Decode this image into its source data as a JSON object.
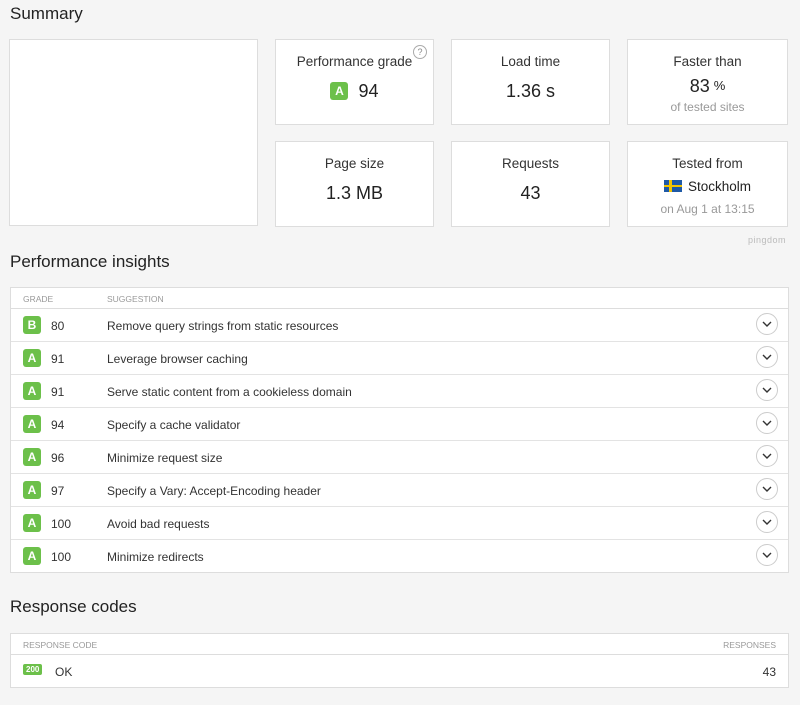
{
  "summary": {
    "title": "Summary",
    "performance": {
      "label": "Performance grade",
      "grade": "A",
      "value": "94",
      "help": "?"
    },
    "load_time": {
      "label": "Load time",
      "value": "1.36 s"
    },
    "faster_than": {
      "label": "Faster than",
      "value": "83",
      "unit": "%",
      "sub": "of tested sites"
    },
    "page_size": {
      "label": "Page size",
      "value": "1.3 MB"
    },
    "requests": {
      "label": "Requests",
      "value": "43"
    },
    "tested_from": {
      "label": "Tested from",
      "location": "Stockholm",
      "flag_icon": "sweden-flag-icon",
      "sub": "on Aug 1 at 13:15"
    },
    "brand": "pingdom"
  },
  "insights": {
    "title": "Performance insights",
    "col_grade": "Grade",
    "col_suggestion": "Suggestion",
    "grade_color": "#6cc04a",
    "rows": [
      {
        "grade": "B",
        "score": "80",
        "suggestion": "Remove query strings from static resources"
      },
      {
        "grade": "A",
        "score": "91",
        "suggestion": "Leverage browser caching"
      },
      {
        "grade": "A",
        "score": "91",
        "suggestion": "Serve static content from a cookieless domain"
      },
      {
        "grade": "A",
        "score": "94",
        "suggestion": "Specify a cache validator"
      },
      {
        "grade": "A",
        "score": "96",
        "suggestion": "Minimize request size"
      },
      {
        "grade": "A",
        "score": "97",
        "suggestion": "Specify a Vary: Accept-Encoding header"
      },
      {
        "grade": "A",
        "score": "100",
        "suggestion": "Avoid bad requests"
      },
      {
        "grade": "A",
        "score": "100",
        "suggestion": "Minimize redirects"
      }
    ]
  },
  "response_codes": {
    "title": "Response codes",
    "col_code": "Response code",
    "col_responses": "Responses",
    "rows": [
      {
        "code": "200",
        "status": "OK",
        "responses": "43"
      }
    ]
  }
}
